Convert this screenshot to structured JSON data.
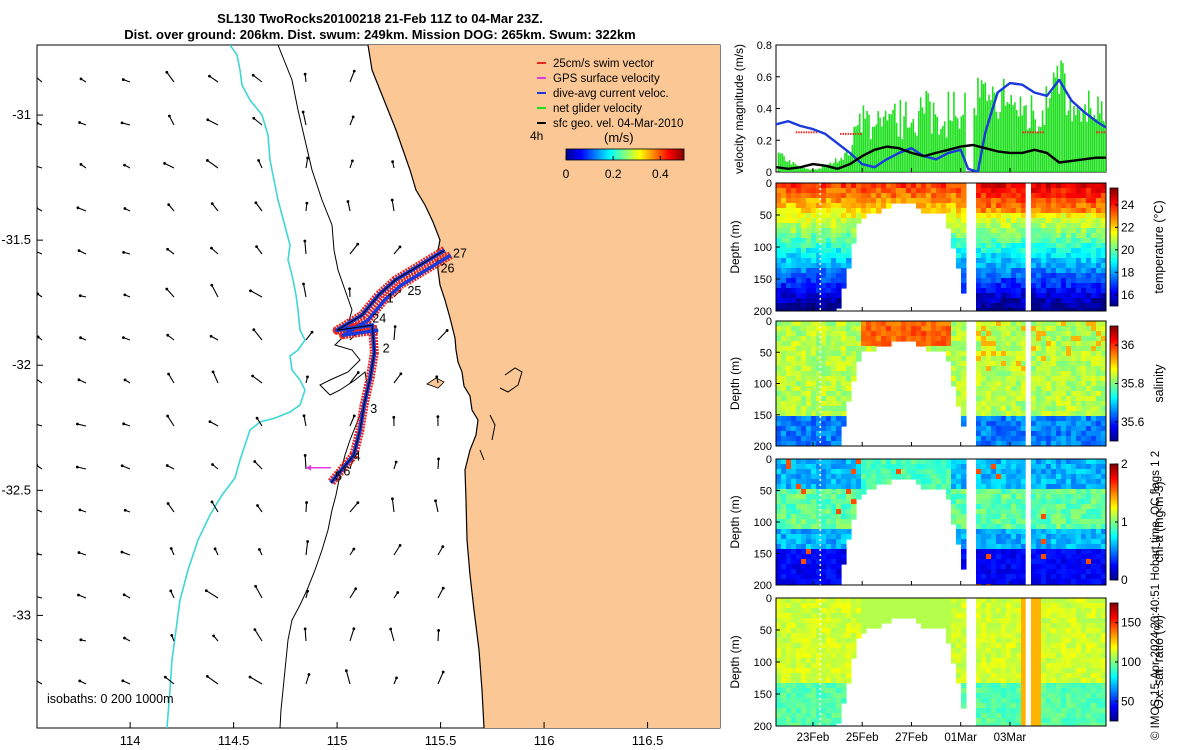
{
  "title": {
    "line1": "SL130 TwoRocks20100218 21-Feb 11Z to 04-Mar 23Z.",
    "line2": "Dist. over ground: 206km. Dist. swum: 249km. Mission DOG: 265km. Swum: 322km"
  },
  "credit": "© IMOS 15-Apr-2024 20:40:51 Hobart time. QC flags 1  2",
  "colors": {
    "land": "#fbc895",
    "isobath": "#3fd6d6",
    "swim": "#e8281e",
    "gps": "#e03ce0",
    "current": "#1a3adb",
    "net": "#1fe01f",
    "geo": "#000000"
  },
  "chart_data": [
    {
      "type": "map",
      "xlabel": "",
      "ylabel": "",
      "xlim": [
        113.55,
        116.85
      ],
      "ylim": [
        -33.45,
        -30.72
      ],
      "xticks": [
        "114",
        "114.5",
        "115",
        "115.5",
        "116",
        "116.5"
      ],
      "xtick_values": [
        114,
        114.5,
        115,
        115.5,
        116,
        116.5
      ],
      "yticks": [
        "-31",
        "-31.5",
        "-32",
        "-32.5",
        "-33"
      ],
      "ytick_values": [
        -31,
        -31.5,
        -32,
        -32.5,
        -33
      ],
      "legend": [
        {
          "label": "25cm/s swim vector",
          "color": "#e8281e"
        },
        {
          "label": "GPS surface velocity",
          "color": "#e03ce0"
        },
        {
          "label": "dive-avg current veloc.",
          "color": "#1a3adb"
        },
        {
          "label": "net glider velocity",
          "color": "#1fe01f"
        },
        {
          "label": "sfc geo. vel. 04-Mar-2010",
          "color": "#000000"
        }
      ],
      "legend_placement": "top-right",
      "colorbar": {
        "label": "(m/s)",
        "side_label": "4h",
        "ticks": [
          "0",
          "0.2",
          "0.4"
        ],
        "tick_values": [
          0,
          0.2,
          0.4
        ],
        "range": [
          0,
          0.5
        ]
      },
      "isobath_note": "isobaths: 0   200  1000m",
      "track_labels": [
        {
          "text": "27",
          "lon": 115.56,
          "lat": -31.57
        },
        {
          "text": "26",
          "lon": 115.5,
          "lat": -31.63
        },
        {
          "text": "25",
          "lon": 115.34,
          "lat": -31.72
        },
        {
          "text": "1",
          "lon": 115.24,
          "lat": -31.75
        },
        {
          "text": "24",
          "lon": 115.17,
          "lat": -31.83
        },
        {
          "text": "2",
          "lon": 115.22,
          "lat": -31.95
        },
        {
          "text": "3",
          "lon": 115.16,
          "lat": -32.19
        },
        {
          "text": "4",
          "lon": 115.08,
          "lat": -32.38
        },
        {
          "text": "6",
          "lon": 115.03,
          "lat": -32.44
        },
        {
          "text": "5",
          "lon": 114.99,
          "lat": -32.46
        }
      ],
      "glider_track": [
        {
          "lon": 115.52,
          "lat": -31.54
        },
        {
          "lon": 115.4,
          "lat": -31.6
        },
        {
          "lon": 115.28,
          "lat": -31.66
        },
        {
          "lon": 115.2,
          "lat": -31.72
        },
        {
          "lon": 115.12,
          "lat": -31.8
        },
        {
          "lon": 115.0,
          "lat": -31.86
        },
        {
          "lon": 115.17,
          "lat": -31.84
        },
        {
          "lon": 115.18,
          "lat": -31.95
        },
        {
          "lon": 115.16,
          "lat": -32.05
        },
        {
          "lon": 115.13,
          "lat": -32.16
        },
        {
          "lon": 115.11,
          "lat": -32.26
        },
        {
          "lon": 115.08,
          "lat": -32.36
        },
        {
          "lon": 115.02,
          "lat": -32.42
        },
        {
          "lon": 114.97,
          "lat": -32.47
        }
      ]
    },
    {
      "type": "line",
      "ylabel": "velocity magnitude (m/s)",
      "ylim": [
        0,
        0.8
      ],
      "yticks": [
        "0",
        "0.2",
        "0.4",
        "0.6",
        "0.8"
      ],
      "tick_values": [
        0,
        0.2,
        0.4,
        0.6,
        0.8
      ],
      "series": [
        {
          "name": "dive-avg current veloc.",
          "color": "#1a3adb",
          "x": [
            21.5,
            22.0,
            22.5,
            23.0,
            23.5,
            24.0,
            24.5,
            25.0,
            25.5,
            26.0,
            26.5,
            27.0,
            27.5,
            28.0,
            28.5,
            29.0,
            29.3,
            29.7,
            30.0,
            30.5,
            31.0,
            31.5,
            32.0,
            32.5,
            33.0,
            33.5,
            34.0,
            34.5,
            34.9
          ],
          "y": [
            0.3,
            0.32,
            0.29,
            0.27,
            0.24,
            0.18,
            0.12,
            0.05,
            0.03,
            0.08,
            0.12,
            0.15,
            0.1,
            0.08,
            0.12,
            0.14,
            0.02,
            0.0,
            0.25,
            0.5,
            0.56,
            0.55,
            0.5,
            0.48,
            0.58,
            0.45,
            0.38,
            0.32,
            0.28
          ]
        },
        {
          "name": "sfc geo. vel. 04-Mar-2010",
          "color": "#000000",
          "x": [
            21.5,
            22.0,
            22.5,
            23.0,
            23.5,
            24.0,
            24.5,
            25.0,
            25.5,
            26.0,
            26.5,
            27.0,
            27.5,
            28.0,
            28.5,
            29.0,
            29.5,
            30.0,
            30.5,
            31.0,
            31.5,
            32.0,
            32.5,
            33.0,
            33.5,
            34.0,
            34.5,
            34.9
          ],
          "y": [
            0.03,
            0.02,
            0.03,
            0.05,
            0.04,
            0.02,
            0.05,
            0.1,
            0.14,
            0.16,
            0.15,
            0.12,
            0.1,
            0.12,
            0.14,
            0.16,
            0.17,
            0.15,
            0.13,
            0.12,
            0.12,
            0.14,
            0.12,
            0.06,
            0.07,
            0.08,
            0.09,
            0.09
          ]
        },
        {
          "name": "net glider velocity",
          "color": "#1fe01f",
          "style": "dense-stems",
          "ymax": 0.8
        }
      ]
    },
    {
      "type": "heatmap",
      "ylabel": "Depth (m)",
      "colorbar_label": "temperature (°C)",
      "colorbar_ticks": [
        "16",
        "18",
        "20",
        "22",
        "24"
      ],
      "colorbar_values": [
        16,
        18,
        20,
        22,
        24
      ],
      "colorbar_range": [
        15,
        25.5
      ],
      "ylim": [
        0,
        200
      ],
      "yticks": [
        "0",
        "50",
        "100",
        "150",
        "200"
      ],
      "ytick_values": [
        0,
        50,
        100,
        150,
        200
      ]
    },
    {
      "type": "heatmap",
      "ylabel": "Depth (m)",
      "colorbar_label": "salinity",
      "colorbar_ticks": [
        "35.6",
        "35.8",
        "36"
      ],
      "colorbar_values": [
        35.6,
        35.8,
        36.0
      ],
      "colorbar_range": [
        35.5,
        36.1
      ],
      "ylim": [
        0,
        200
      ],
      "yticks": [
        "0",
        "50",
        "100",
        "150",
        "200"
      ],
      "ytick_values": [
        0,
        50,
        100,
        150,
        200
      ]
    },
    {
      "type": "heatmap",
      "ylabel": "Depth (m)",
      "colorbar_label": "chl-a (mg m-3)",
      "colorbar_ticks": [
        "0",
        "1",
        "2"
      ],
      "colorbar_values": [
        0,
        1,
        2
      ],
      "colorbar_range": [
        0,
        2
      ],
      "ylim": [
        0,
        200
      ],
      "yticks": [
        "0",
        "50",
        "100",
        "150",
        "200"
      ],
      "ytick_values": [
        0,
        50,
        100,
        150,
        200
      ]
    },
    {
      "type": "heatmap",
      "ylabel": "Depth (m)",
      "colorbar_label": "Ox. sat. ratio (%)",
      "colorbar_ticks": [
        "50",
        "100",
        "150"
      ],
      "colorbar_values": [
        50,
        100,
        150
      ],
      "colorbar_range": [
        25,
        175
      ],
      "ylim": [
        0,
        200
      ],
      "yticks": [
        "0",
        "50",
        "100",
        "150",
        "200"
      ],
      "ytick_values": [
        0,
        50,
        100,
        150,
        200
      ],
      "xticks": [
        "23Feb",
        "25Feb",
        "27Feb",
        "01Mar",
        "03Mar"
      ],
      "xtick_values": [
        23,
        25,
        27,
        29,
        31
      ],
      "xlim": [
        21.5,
        34.9
      ]
    }
  ]
}
